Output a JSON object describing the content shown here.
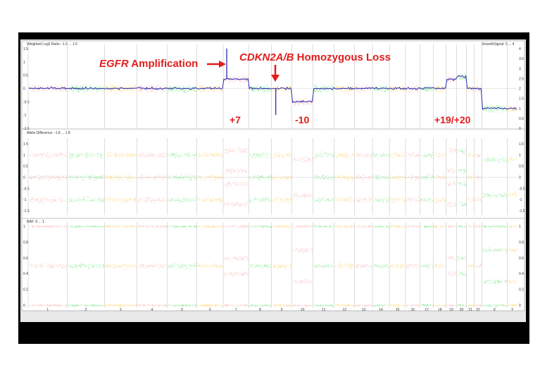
{
  "chart_data": [
    {
      "type": "scatter",
      "title": "Weighted Log2 Ratio: -1.5 ... 1.5",
      "right_title": "SmoothSignal: 0 ... 4",
      "ylim": [
        -1.5,
        1.5
      ],
      "yticks": [
        "1.5",
        "1",
        "0.5",
        "0",
        "-0.5",
        "-1",
        "-1.5"
      ],
      "right_yticks": [
        "4",
        "3.5",
        "3",
        "2.5",
        "2",
        "1.5",
        "1",
        "0.5",
        "0"
      ],
      "chromosomes": [
        "1",
        "2",
        "3",
        "4",
        "5",
        "6",
        "7",
        "8",
        "9",
        "10",
        "11",
        "12",
        "13",
        "14",
        "15",
        "16",
        "17",
        "18",
        "19",
        "20",
        "21",
        "22",
        "X",
        "Y"
      ],
      "segment_log2": [
        0.0,
        0.0,
        0.0,
        0.0,
        0.0,
        0.0,
        0.35,
        0.0,
        0.0,
        -0.5,
        0.0,
        0.0,
        0.0,
        0.0,
        0.0,
        0.0,
        0.0,
        0.0,
        0.35,
        0.45,
        0.0,
        0.0,
        -0.75,
        -0.75
      ],
      "focal_events": [
        {
          "chromosome": "7",
          "log2": 1.5
        },
        {
          "chromosome": "9",
          "log2": -1.0
        }
      ]
    },
    {
      "type": "scatter",
      "title": "Allele Difference: -1.8 ... 1.8",
      "yticks": [
        "1.5",
        "1",
        "0.5",
        "0",
        "-0.5",
        "-1",
        "-1.5"
      ],
      "right_yticks": [
        "1.5",
        "1",
        "0.5",
        "0",
        "-0.5",
        "-1",
        "-1.5"
      ],
      "bands": {
        "normal": [
          1.0,
          0.0,
          -1.0
        ],
        "gain": [
          1.2,
          0.3,
          -0.3,
          -1.2
        ],
        "loss": [
          0.8,
          -0.8
        ],
        "cnloh": [
          0.6,
          -0.6
        ]
      }
    },
    {
      "type": "scatter",
      "title": "BAF: 0 ... 1",
      "yticks": [
        "1",
        "0.8",
        "0.6",
        "0.4",
        "0.2",
        "0"
      ],
      "right_yticks": [
        "1",
        "0.8",
        "0.6",
        "0.4",
        "0.2",
        "0"
      ],
      "bands": {
        "normal": [
          0.0,
          0.5,
          1.0
        ],
        "gain": [
          0.0,
          0.4,
          0.6,
          1.0
        ],
        "loss": [
          0.0,
          0.3,
          0.7,
          1.0
        ]
      }
    }
  ],
  "annotations": {
    "egfr_gene": "EGFR",
    "egfr_text": " Amplification",
    "cdkn_gene": "CDKN2A/B",
    "cdkn_text": " Homozygous Loss",
    "gain7": "+7",
    "loss10": "-10",
    "gain19_20": "+19/+20"
  },
  "colors": {
    "green": "#55e065",
    "orange": "#ffc23a",
    "pink": "#f7a0a0",
    "smooth_line": "#2b2bb3",
    "annotation": "#e11d1d",
    "frame": "#000000"
  }
}
